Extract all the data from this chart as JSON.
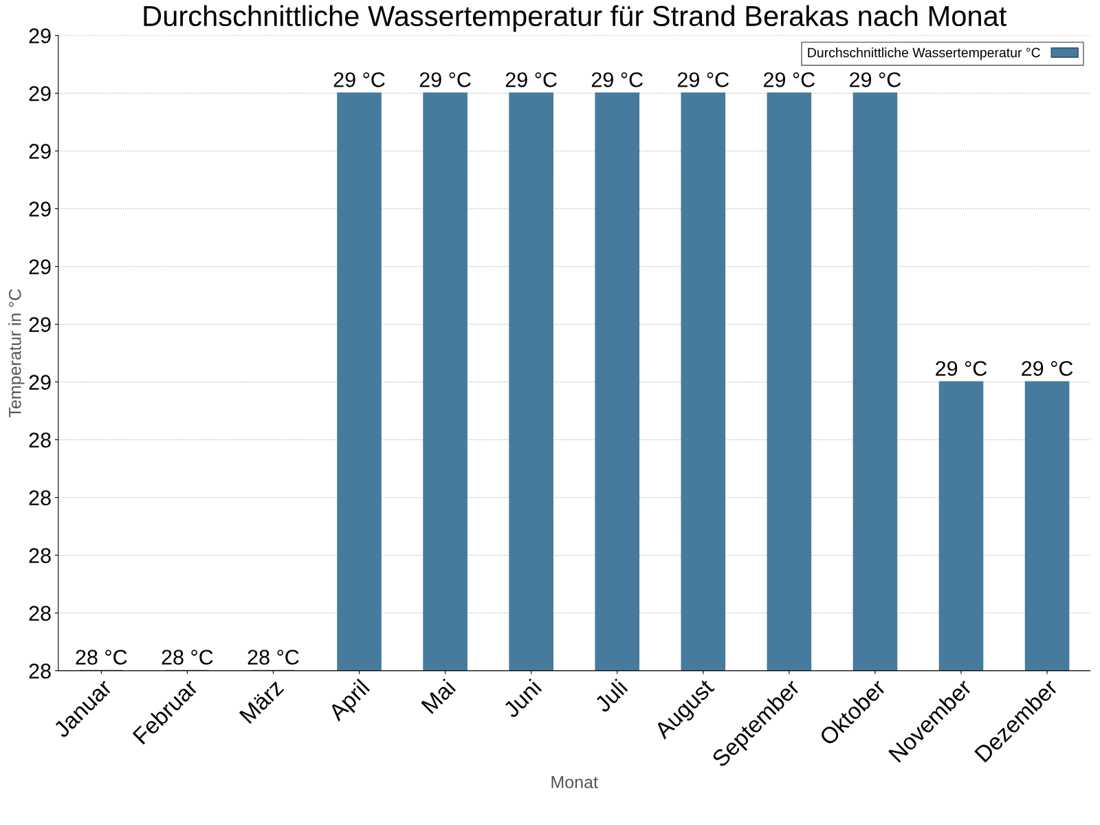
{
  "chart_data": {
    "type": "bar",
    "title": "Durchschnittliche Wassertemperatur für Strand Berakas nach Monat",
    "xlabel": "Monat",
    "ylabel": "Temperatur in °C",
    "categories": [
      "Januar",
      "Februar",
      "März",
      "April",
      "Mai",
      "Juni",
      "Juli",
      "August",
      "September",
      "Oktober",
      "November",
      "Dezember"
    ],
    "series": [
      {
        "name": "Durchschnittliche Wassertemperatur °C",
        "color": "#467b9d",
        "values": [
          28.0,
          28.0,
          28.0,
          29.0,
          29.0,
          29.0,
          29.0,
          29.0,
          29.0,
          29.0,
          28.5,
          28.5
        ],
        "value_labels": [
          "28 °C",
          "28 °C",
          "28 °C",
          "29 °C",
          "29 °C",
          "29 °C",
          "29 °C",
          "29 °C",
          "29 °C",
          "29 °C",
          "29 °C",
          "29 °C"
        ]
      }
    ],
    "ylim": [
      28.0,
      29.1
    ],
    "yticks": [
      {
        "value": 28.0,
        "label": "28"
      },
      {
        "value": 28.1,
        "label": "28"
      },
      {
        "value": 28.2,
        "label": "28"
      },
      {
        "value": 28.3,
        "label": "28"
      },
      {
        "value": 28.4,
        "label": "28"
      },
      {
        "value": 28.5,
        "label": "29"
      },
      {
        "value": 28.6,
        "label": "29"
      },
      {
        "value": 28.7,
        "label": "29"
      },
      {
        "value": 28.8,
        "label": "29"
      },
      {
        "value": 28.9,
        "label": "29"
      },
      {
        "value": 29.0,
        "label": "29"
      },
      {
        "value": 29.1,
        "label": "29"
      }
    ],
    "grid": "y",
    "legend": "top right"
  }
}
